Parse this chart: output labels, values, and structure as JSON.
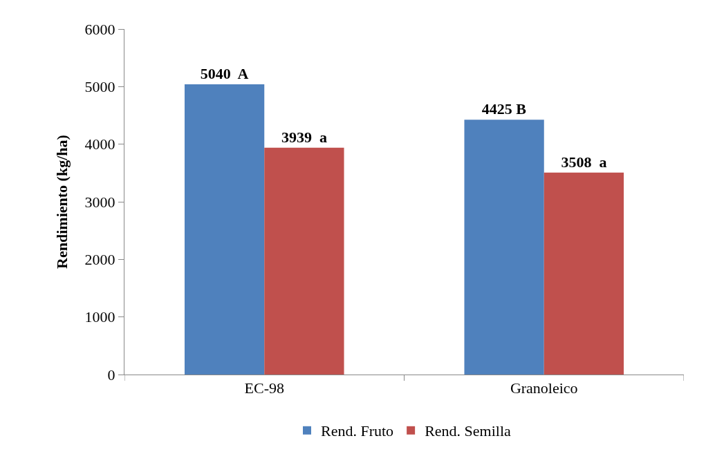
{
  "chart_data": {
    "type": "bar",
    "ylabel": "Rendimiento (kg/ha)",
    "categories": [
      "EC-98",
      "Granoleico"
    ],
    "series": [
      {
        "name": "Rend. Fruto",
        "color": "#4f81bd",
        "values": [
          5040,
          4425
        ],
        "value_labels": [
          "5040  A",
          "4425 B"
        ]
      },
      {
        "name": "Rend. Semilla",
        "color": "#c0504d",
        "values": [
          3939,
          3508
        ],
        "value_labels": [
          "3939  a",
          "3508  a"
        ]
      }
    ],
    "ylim": [
      0,
      6000
    ],
    "yticks": [
      0,
      1000,
      2000,
      3000,
      4000,
      5000,
      6000
    ],
    "grid": false,
    "legend": "bottom"
  }
}
